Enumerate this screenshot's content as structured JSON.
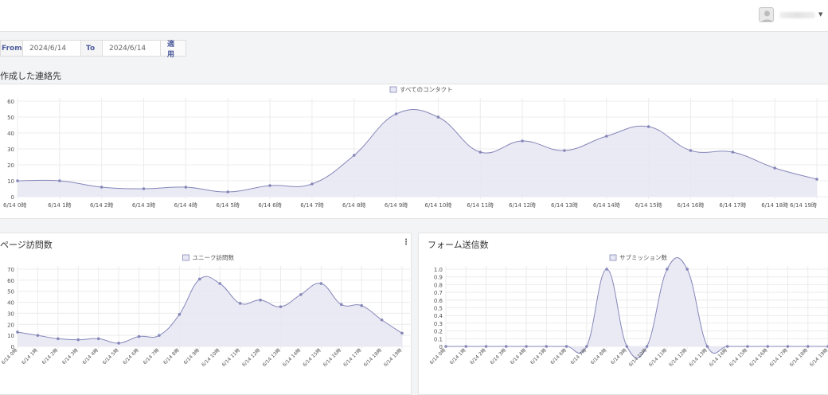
{
  "date_range": {
    "from_label": "From",
    "from_value": "2024/6/14",
    "to_label": "To",
    "to_value": "2024/6/14",
    "apply_label": "適用"
  },
  "sections": {
    "contacts_title": "作成した連絡先",
    "pageviews_title": "ページ訪問数",
    "forms_title": "フォーム送信数"
  },
  "colors": {
    "line": "#8587b8",
    "fill": "#e8e8f4",
    "grid": "#ececec",
    "axis_text": "#555555"
  },
  "chart_data": [
    {
      "id": "contacts",
      "type": "area",
      "legend": "すべてのコンタクト",
      "legend_position": "top-center",
      "categories": [
        "6/14 0時",
        "6/14 1時",
        "6/14 2時",
        "6/14 3時",
        "6/14 4時",
        "6/14 5時",
        "6/14 6時",
        "6/14 7時",
        "6/14 8時",
        "6/14 9時",
        "6/14 10時",
        "6/14 11時",
        "6/14 12時",
        "6/14 13時",
        "6/14 14時",
        "6/14 15時",
        "6/14 16時",
        "6/14 17時",
        "6/14 18時",
        "6/14 19時"
      ],
      "values": [
        10,
        10,
        6,
        5,
        6,
        3,
        7,
        8,
        26,
        52,
        50,
        28,
        35,
        29,
        38,
        44,
        29,
        28,
        18,
        11
      ],
      "ylim": [
        0,
        60
      ],
      "yticks": [
        0,
        10,
        20,
        30,
        40,
        50,
        60
      ],
      "grid": true
    },
    {
      "id": "pageviews",
      "type": "area",
      "legend": "ユニーク訪問数",
      "legend_position": "top-center",
      "categories": [
        "6/14 0時",
        "6/14 1時",
        "6/14 2時",
        "6/14 3時",
        "6/14 4時",
        "6/14 5時",
        "6/14 6時",
        "6/14 7時",
        "6/14 8時",
        "6/14 9時",
        "6/14 10時",
        "6/14 11時",
        "6/14 12時",
        "6/14 13時",
        "6/14 14時",
        "6/14 15時",
        "6/14 16時",
        "6/14 17時",
        "6/14 18時",
        "6/14 19時"
      ],
      "values": [
        13,
        10,
        7,
        6,
        7,
        3,
        9,
        10,
        29,
        61,
        57,
        39,
        42,
        36,
        47,
        57,
        38,
        37,
        24,
        12
      ],
      "ylim": [
        0,
        70
      ],
      "yticks": [
        0,
        10,
        20,
        30,
        40,
        50,
        60,
        70
      ],
      "grid": true
    },
    {
      "id": "forms",
      "type": "area",
      "legend": "サブミッション数",
      "legend_position": "top-center",
      "categories": [
        "6/14 0時",
        "6/14 1時",
        "6/14 2時",
        "6/14 3時",
        "6/14 4時",
        "6/14 5時",
        "6/14 6時",
        "6/14 7時",
        "6/14 8時",
        "6/14 9時",
        "6/14 10時",
        "6/14 11時",
        "6/14 12時",
        "6/14 13時",
        "6/14 14時",
        "6/14 15時",
        "6/14 16時",
        "6/14 17時",
        "6/14 18時",
        "6/14 19時"
      ],
      "values": [
        0,
        0,
        0,
        0,
        0,
        0,
        0,
        0,
        1,
        0,
        0,
        1,
        1,
        0,
        0,
        0,
        0,
        0,
        0,
        0
      ],
      "ylim": [
        0,
        1.0
      ],
      "yticks": [
        "0",
        "0.1",
        "0.2",
        "0.3",
        "0.4",
        "0.5",
        "0.6",
        "0.7",
        "0.8",
        "0.9",
        "1.0"
      ],
      "grid": true
    }
  ]
}
